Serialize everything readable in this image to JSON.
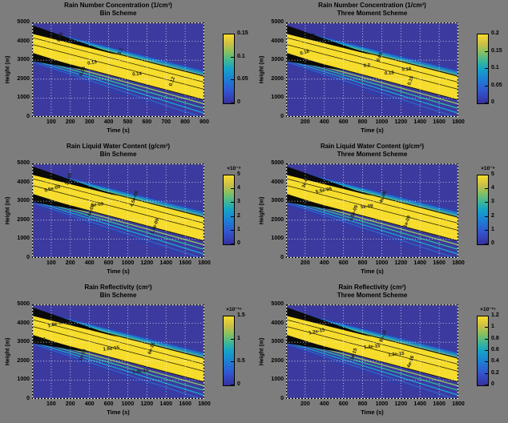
{
  "figure": {
    "background_color": "#7d7d7d",
    "plot_background_color": "#3c3a9e",
    "band_core_color": "#f6dc2c",
    "colormap": "parula"
  },
  "chart_data": {
    "type": "heatmap",
    "subtype": "filled contour, time-height cross sections of a descending rain shaft",
    "layout": "2 columns (Bin Scheme | Three Moment Scheme) x 3 rows (Number Concentration, Liquid Water Content, Reflectivity)",
    "shared": {
      "xlabel": "Time (s)",
      "ylabel": "Height (m)",
      "ylim": [
        0,
        5000
      ],
      "yticks": [
        "5000",
        "4000",
        "3000",
        "2000",
        "1000",
        "0"
      ],
      "grid": "white dotted gridlines at every tick"
    },
    "subplots": [
      {
        "title1": "Rain Number Concentration (1/cm³)",
        "title2": "Bin Scheme",
        "xlim": [
          0,
          900
        ],
        "xticks": [
          "100",
          "200",
          "300",
          "400",
          "500",
          "600",
          "700",
          "800",
          "900"
        ],
        "colorbar": {
          "exponent": null,
          "range": [
            0,
            0.15
          ],
          "ticks": [
            "0.15",
            "0.1",
            "0.05",
            "0"
          ]
        },
        "band": {
          "left_height_m": [
            3300,
            4500
          ],
          "right_height_m": [
            1400,
            2100
          ]
        },
        "contour_labels": [
          {
            "text": "0.15",
            "x": 0.35,
            "y": 0.44,
            "rot": -10
          },
          {
            "text": "0.14",
            "x": 0.61,
            "y": 0.56,
            "rot": -5
          },
          {
            "text": "0.05",
            "x": 0.3,
            "y": 0.52,
            "rot": -70
          },
          {
            "text": "0.1",
            "x": 0.52,
            "y": 0.31,
            "rot": -70
          },
          {
            "text": "0.12",
            "x": 0.82,
            "y": 0.63,
            "rot": -70
          },
          {
            "text": "0.05",
            "x": 0.17,
            "y": 0.16,
            "rot": -70
          }
        ]
      },
      {
        "title1": "Rain Number Concentration (1/cm³)",
        "title2": "Three Moment Scheme",
        "xlim": [
          0,
          1800
        ],
        "xticks": [
          "200",
          "400",
          "600",
          "800",
          "1000",
          "1200",
          "1400",
          "1600",
          "1800"
        ],
        "colorbar": {
          "exponent": null,
          "range": [
            0,
            0.2
          ],
          "ticks": [
            "0.2",
            "0.15",
            "0.1",
            "0.05",
            "0"
          ]
        },
        "band": {
          "left_height_m": [
            3300,
            4500
          ],
          "right_height_m": [
            1400,
            2100
          ]
        },
        "contour_labels": [
          {
            "text": "0.18",
            "x": 0.11,
            "y": 0.33,
            "rot": -15
          },
          {
            "text": "0.2",
            "x": 0.47,
            "y": 0.47,
            "rot": -5
          },
          {
            "text": "0.18",
            "x": 0.6,
            "y": 0.55,
            "rot": -5
          },
          {
            "text": "0.18",
            "x": 0.7,
            "y": 0.51,
            "rot": -5
          },
          {
            "text": "0.05",
            "x": 0.55,
            "y": 0.37,
            "rot": -70
          },
          {
            "text": "0.1",
            "x": 0.16,
            "y": 0.15,
            "rot": -70
          },
          {
            "text": "0.15",
            "x": 0.73,
            "y": 0.62,
            "rot": -70
          }
        ]
      },
      {
        "title1": "Rain Liquid Water Content (g/cm³)",
        "title2": "Bin Scheme",
        "xlim": [
          0,
          1800
        ],
        "xticks": [
          "100",
          "200",
          "400",
          "600",
          "1000",
          "1200",
          "1400",
          "1600",
          "1800"
        ],
        "colorbar": {
          "exponent": "×10⁻⁹",
          "range": [
            0,
            5.5e-09
          ],
          "ticks": [
            "5",
            "4",
            "3",
            "2",
            "1",
            "0"
          ]
        },
        "band": {
          "left_height_m": [
            3300,
            4500
          ],
          "right_height_m": [
            1400,
            2100
          ]
        },
        "contour_labels": [
          {
            "text": "5.5e-09",
            "x": 0.12,
            "y": 0.28,
            "rot": -15
          },
          {
            "text": "5e-09",
            "x": 0.38,
            "y": 0.45,
            "rot": -6
          },
          {
            "text": "4.5e-09",
            "x": 0.6,
            "y": 0.38,
            "rot": -70
          },
          {
            "text": "4e-09",
            "x": 0.35,
            "y": 0.5,
            "rot": -70
          },
          {
            "text": "1.5e-09",
            "x": 0.72,
            "y": 0.67,
            "rot": -70
          },
          {
            "text": "3e-09",
            "x": 0.22,
            "y": 0.17,
            "rot": -70
          }
        ]
      },
      {
        "title1": "Rain Liquid Water Content (g/cm³)",
        "title2": "Three Moment Scheme",
        "xlim": [
          0,
          1800
        ],
        "xticks": [
          "200",
          "400",
          "600",
          "800",
          "1000",
          "1200",
          "1400",
          "1600",
          "1800"
        ],
        "colorbar": {
          "exponent": "×10⁻⁹",
          "range": [
            0,
            5.5e-09
          ],
          "ticks": [
            "5",
            "4",
            "3",
            "2",
            "1",
            "0"
          ]
        },
        "band": {
          "left_height_m": [
            3300,
            4500
          ],
          "right_height_m": [
            1400,
            2100
          ]
        },
        "contour_labels": [
          {
            "text": "5.5e-09",
            "x": 0.22,
            "y": 0.3,
            "rot": -12
          },
          {
            "text": "5e-09",
            "x": 0.47,
            "y": 0.47,
            "rot": -6
          },
          {
            "text": "4.5e-09",
            "x": 0.4,
            "y": 0.53,
            "rot": -70
          },
          {
            "text": "4e-09",
            "x": 0.57,
            "y": 0.36,
            "rot": -70
          },
          {
            "text": "1e-09",
            "x": 0.71,
            "y": 0.62,
            "rot": -70
          },
          {
            "text": "3e-09",
            "x": 0.12,
            "y": 0.2,
            "rot": -70
          }
        ]
      },
      {
        "title1": "Rain Reflectivity (cm³)",
        "title2": "Bin Scheme",
        "xlim": [
          0,
          1800
        ],
        "xticks": [
          "100",
          "200",
          "400",
          "600",
          "1000",
          "1200",
          "1400",
          "1600",
          "1800"
        ],
        "colorbar": {
          "exponent": "×10⁻¹⁵",
          "range": [
            0,
            1.5e-15
          ],
          "ticks": [
            "1.5",
            "1",
            "0.5",
            "0"
          ]
        },
        "band": {
          "left_height_m": [
            3300,
            4500
          ],
          "right_height_m": [
            1400,
            2100
          ]
        },
        "contour_labels": [
          {
            "text": "1.8e-15",
            "x": 0.14,
            "y": 0.22,
            "rot": -15
          },
          {
            "text": "8e-16",
            "x": 0.05,
            "y": 0.4,
            "rot": -20
          },
          {
            "text": "1.6e-15",
            "x": 0.46,
            "y": 0.48,
            "rot": -6
          },
          {
            "text": "1.4e-15",
            "x": 0.63,
            "y": 0.72,
            "rot": -6
          },
          {
            "text": "1e-15",
            "x": 0.3,
            "y": 0.54,
            "rot": -70
          },
          {
            "text": "6e-16",
            "x": 0.7,
            "y": 0.47,
            "rot": -70
          }
        ]
      },
      {
        "title1": "Rain Reflectivity (cm³)",
        "title2": "Three Moment Scheme",
        "xlim": [
          0,
          1800
        ],
        "xticks": [
          "200",
          "400",
          "600",
          "800",
          "1000",
          "1200",
          "1400",
          "1600",
          "1800"
        ],
        "colorbar": {
          "exponent": "×10⁻¹⁵",
          "range": [
            0,
            1.2e-15
          ],
          "ticks": [
            "1.2",
            "1",
            "0.8",
            "0.6",
            "0.4",
            "0.2",
            "0"
          ]
        },
        "band": {
          "left_height_m": [
            3300,
            4500
          ],
          "right_height_m": [
            1400,
            2100
          ]
        },
        "contour_labels": [
          {
            "text": "1.2e-15",
            "x": 0.18,
            "y": 0.3,
            "rot": -12
          },
          {
            "text": "1.4e-15",
            "x": 0.5,
            "y": 0.46,
            "rot": -6
          },
          {
            "text": "1.2e-15",
            "x": 0.64,
            "y": 0.54,
            "rot": -6
          },
          {
            "text": "1e-15",
            "x": 0.4,
            "y": 0.53,
            "rot": -70
          },
          {
            "text": "8e-16",
            "x": 0.57,
            "y": 0.34,
            "rot": -70
          },
          {
            "text": "4e-16",
            "x": 0.73,
            "y": 0.61,
            "rot": -70
          }
        ]
      }
    ]
  }
}
